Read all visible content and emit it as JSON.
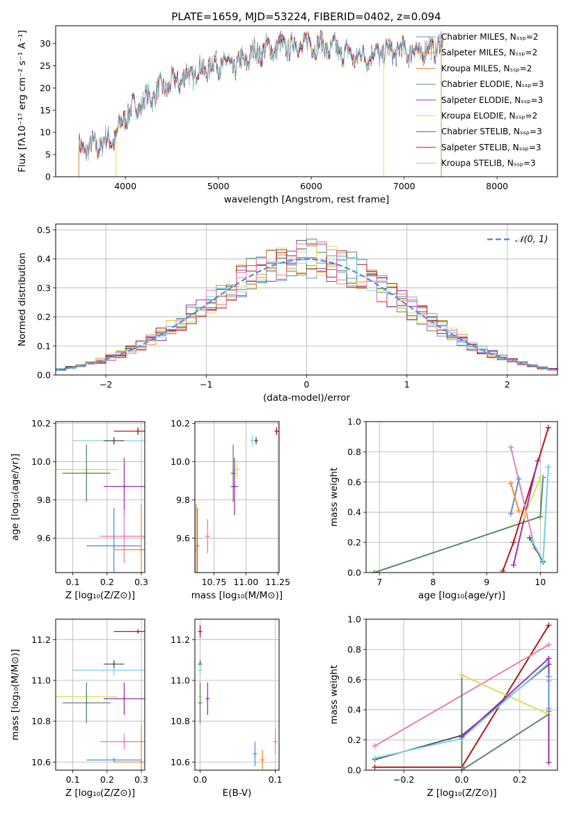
{
  "figure": {
    "title": "PLATE=1659, MJD=53224, FIBERID=0402, z=0.094"
  },
  "colors": {
    "Chabrier MILES": "#5b8fd9",
    "Salpeter MILES": "#f28d2c",
    "Kroupa MILES": "#d98a2b",
    "Chabrier ELODIE": "#5c8a5c",
    "Salpeter ELODIE": "#9b30b0",
    "Kroupa ELODIE": "#d4e157",
    "Chabrier STELIB": "#555555",
    "Salpeter STELIB": "#b01818",
    "Kroupa STELIB": "#80d8e6",
    "pink": "#e67fb5",
    "normal": "#5b8fd9"
  },
  "chart_data": [
    {
      "id": "spectrum",
      "type": "line",
      "title": "PLATE=1659, MJD=53224, FIBERID=0402, z=0.094",
      "xlabel": "wavelength [Angstrom, rest frame]",
      "ylabel": "Flux [fλ10⁻¹⁷ erg cm⁻² s⁻¹ A⁻¹]",
      "xlim": [
        3250,
        8650
      ],
      "ylim": [
        0,
        34
      ],
      "xticks": [
        4000,
        5000,
        6000,
        7000,
        8000
      ],
      "yticks": [
        0,
        5,
        10,
        15,
        20,
        25,
        30
      ],
      "legend_position": "upper-right",
      "legend": [
        "Chabrier MILES, Nₛₛₚ=2",
        "Salpeter MILES, Nₛₛₚ=2",
        "Kroupa MILES, Nₛₛₚ=2",
        "Chabrier ELODIE, Nₛₛₚ=3",
        "Salpeter ELODIE, Nₛₛₚ=3",
        "Kroupa ELODIE, Nₛₛₚ=2",
        "Chabrier STELIB, Nₛₛₚ=3",
        "Salpeter STELIB, Nₛₛₚ=3",
        "Kroupa STELIB, Nₛₛₚ=3"
      ],
      "continuum": [
        [
          3500,
          6
        ],
        [
          3700,
          7
        ],
        [
          3900,
          9
        ],
        [
          4000,
          14
        ],
        [
          4200,
          17
        ],
        [
          4400,
          20
        ],
        [
          4600,
          22
        ],
        [
          4800,
          24
        ],
        [
          5000,
          25.5
        ],
        [
          5200,
          25
        ],
        [
          5400,
          28
        ],
        [
          5600,
          29
        ],
        [
          5800,
          29.5
        ],
        [
          6000,
          30
        ],
        [
          6200,
          29
        ],
        [
          6500,
          27
        ],
        [
          6800,
          28
        ],
        [
          7000,
          28.5
        ],
        [
          7200,
          28
        ],
        [
          7400,
          30
        ]
      ],
      "cutoffs": [
        {
          "series": "Kroupa MILES",
          "x": 3500
        },
        {
          "series": "Kroupa ELODIE",
          "x": 3900
        },
        {
          "series": "Kroupa ELODIE",
          "x": 6780
        },
        {
          "series": "Kroupa MILES",
          "x": 7400
        }
      ]
    },
    {
      "id": "residuals",
      "type": "line",
      "xlabel": "(data-model)/error",
      "ylabel": "Normed distribution",
      "xlim": [
        -2.5,
        2.5
      ],
      "ylim": [
        0,
        0.52
      ],
      "xticks": [
        -2,
        -1,
        0,
        1,
        2
      ],
      "yticks": [
        0.0,
        0.1,
        0.2,
        0.3,
        0.4,
        0.5
      ],
      "legend": [
        "𝒩(0, 1)"
      ],
      "legend_position": "upper-right",
      "bin_width": 0.1
    },
    {
      "id": "age-vs-Z",
      "type": "scatter",
      "xlabel": "Z [log₁₀(Z/Z⊙)]",
      "ylabel": "age  [log₁₀(age/yr)]",
      "xlim": [
        0.05,
        0.31
      ],
      "ylim": [
        9.42,
        10.21
      ],
      "xticks": [
        0.1,
        0.2,
        0.3
      ],
      "yticks": [
        9.6,
        9.8,
        10.0,
        10.2
      ],
      "points": [
        {
          "series": "Salpeter STELIB",
          "x": 0.29,
          "y": 10.16,
          "xerr": 0.07,
          "yerr": 0.02
        },
        {
          "series": "Kroupa STELIB",
          "x": 0.22,
          "y": 10.11,
          "xerr": 0.12,
          "yerr": 0.02
        },
        {
          "series": "Chabrier STELIB",
          "x": 0.22,
          "y": 10.11,
          "xerr": 0.03,
          "yerr": 0.02
        },
        {
          "series": "Kroupa ELODIE",
          "x": 0.14,
          "y": 9.96,
          "xerr": 0.09,
          "yerr": 0.05
        },
        {
          "series": "Chabrier ELODIE",
          "x": 0.14,
          "y": 9.94,
          "xerr": 0.07,
          "yerr": 0.15
        },
        {
          "series": "Salpeter ELODIE",
          "x": 0.25,
          "y": 9.87,
          "xerr": 0.06,
          "yerr": 0.15
        },
        {
          "series": "pink",
          "x": 0.25,
          "y": 9.61,
          "xerr": 0.07,
          "yerr": 0.14
        },
        {
          "series": "Chabrier MILES",
          "x": 0.22,
          "y": 9.56,
          "xerr": 0.08,
          "yerr": 0.2
        },
        {
          "series": "Salpeter MILES",
          "x": 0.3,
          "y": 9.54,
          "xerr": 0.08,
          "yerr": 0.24
        }
      ]
    },
    {
      "id": "age-vs-mass",
      "type": "scatter",
      "xlabel": "mass [log₁₀(M/M⊙)]",
      "xlim": [
        10.6,
        11.26
      ],
      "ylim": [
        9.42,
        10.21
      ],
      "xticks": [
        10.75,
        11.0,
        11.25
      ],
      "xticklabels": [
        "10.75",
        "11.00",
        "11.25"
      ],
      "yticks": [
        9.6,
        9.8,
        10.0,
        10.2
      ],
      "points": [
        {
          "series": "Salpeter STELIB",
          "x": 11.24,
          "y": 10.16,
          "xerr": 0.0,
          "yerr": 0.02
        },
        {
          "series": "Chabrier STELIB",
          "x": 11.08,
          "y": 10.11,
          "xerr": 0.01,
          "yerr": 0.02
        },
        {
          "series": "Kroupa STELIB",
          "x": 11.05,
          "y": 10.11,
          "xerr": 0.0,
          "yerr": 0.03
        },
        {
          "series": "Kroupa ELODIE",
          "x": 10.93,
          "y": 9.96,
          "xerr": 0.02,
          "yerr": 0.05
        },
        {
          "series": "Chabrier ELODIE",
          "x": 10.9,
          "y": 9.94,
          "xerr": 0.02,
          "yerr": 0.15
        },
        {
          "series": "Salpeter ELODIE",
          "x": 10.91,
          "y": 9.87,
          "xerr": 0.03,
          "yerr": 0.15
        },
        {
          "series": "pink",
          "x": 10.7,
          "y": 9.61,
          "xerr": 0.02,
          "yerr": 0.09
        },
        {
          "series": "Chabrier MILES",
          "x": 10.62,
          "y": 9.56,
          "xerr": 0.01,
          "yerr": 0.2
        },
        {
          "series": "Salpeter MILES",
          "x": 10.61,
          "y": 9.54,
          "xerr": 0.0,
          "yerr": 0.24
        }
      ]
    },
    {
      "id": "weight-vs-age",
      "type": "line",
      "xlabel": "age  [log₁₀(age/yr)]",
      "ylabel": "mass weight",
      "xlim": [
        6.75,
        10.32
      ],
      "ylim": [
        0,
        1
      ],
      "xticks": [
        7,
        8,
        9,
        10
      ],
      "yticks": [
        0.0,
        0.2,
        0.4,
        0.6,
        0.8,
        1.0
      ],
      "series": [
        {
          "name": "Chabrier ELODIE",
          "points": [
            [
              6.9,
              0.0
            ],
            [
              10.0,
              0.37
            ],
            [
              10.05,
              0.63
            ]
          ]
        },
        {
          "name": "Salpeter STELIB",
          "points": [
            [
              9.3,
              0.01
            ],
            [
              9.5,
              0.2
            ],
            [
              10.15,
              0.96
            ]
          ]
        },
        {
          "name": "pink",
          "points": [
            [
              9.45,
              0.83
            ],
            [
              9.9,
              0.16
            ]
          ]
        },
        {
          "name": "Salpeter ELODIE",
          "points": [
            [
              9.5,
              0.05
            ],
            [
              9.95,
              0.74
            ]
          ]
        },
        {
          "name": "Chabrier MILES",
          "points": [
            [
              9.45,
              0.39
            ],
            [
              9.6,
              0.62
            ]
          ]
        },
        {
          "name": "Salpeter MILES",
          "points": [
            [
              9.45,
              0.59
            ],
            [
              9.6,
              0.41
            ]
          ]
        },
        {
          "name": "Kroupa ELODIE",
          "points": [
            [
              9.7,
              0.37
            ],
            [
              10.0,
              0.63
            ]
          ]
        },
        {
          "name": "Chabrier STELIB",
          "points": [
            [
              9.8,
              0.23
            ],
            [
              10.05,
              0.07
            ],
            [
              10.15,
              0.7
            ]
          ]
        },
        {
          "name": "Kroupa STELIB",
          "points": [
            [
              9.85,
              0.21
            ],
            [
              10.05,
              0.08
            ],
            [
              10.15,
              0.7
            ]
          ]
        }
      ]
    },
    {
      "id": "mass-vs-Z",
      "type": "scatter",
      "xlabel": "Z [log₁₀(Z/Z⊙)]",
      "ylabel": "mass [log₁₀(M/M⊙)]",
      "xlim": [
        0.05,
        0.31
      ],
      "ylim": [
        10.56,
        11.3
      ],
      "xticks": [
        0.1,
        0.2,
        0.3
      ],
      "yticks": [
        10.6,
        10.8,
        11.0,
        11.2
      ],
      "points": [
        {
          "series": "Salpeter STELIB",
          "x": 0.29,
          "y": 11.24,
          "xerr": 0.07,
          "yerr": 0.01
        },
        {
          "series": "Kroupa STELIB",
          "x": 0.22,
          "y": 11.05,
          "xerr": 0.12,
          "yerr": 0.03
        },
        {
          "series": "Chabrier STELIB",
          "x": 0.22,
          "y": 11.08,
          "xerr": 0.03,
          "yerr": 0.02
        },
        {
          "series": "Kroupa ELODIE",
          "x": 0.14,
          "y": 10.92,
          "xerr": 0.09,
          "yerr": 0.02
        },
        {
          "series": "Chabrier ELODIE",
          "x": 0.14,
          "y": 10.89,
          "xerr": 0.07,
          "yerr": 0.1
        },
        {
          "series": "Salpeter ELODIE",
          "x": 0.25,
          "y": 10.91,
          "xerr": 0.06,
          "yerr": 0.08
        },
        {
          "series": "pink",
          "x": 0.25,
          "y": 10.7,
          "xerr": 0.07,
          "yerr": 0.04
        },
        {
          "series": "Chabrier MILES",
          "x": 0.22,
          "y": 10.61,
          "xerr": 0.08,
          "yerr": 0.01
        },
        {
          "series": "Salpeter MILES",
          "x": 0.3,
          "y": 10.6,
          "xerr": 0.08,
          "yerr": 0.18
        }
      ]
    },
    {
      "id": "mass-vs-ebv",
      "type": "scatter",
      "xlabel": "E(B-V)",
      "xlim": [
        -0.007,
        0.105
      ],
      "ylim": [
        10.56,
        11.3
      ],
      "xticks": [
        0.0,
        0.1
      ],
      "yticks": [
        10.6,
        10.8,
        11.0,
        11.2
      ],
      "points": [
        {
          "series": "Salpeter STELIB",
          "x": 0.0,
          "y": 11.24,
          "xerr": 0.0,
          "yerr": 0.03
        },
        {
          "series": "Chabrier STELIB",
          "x": 0.0,
          "y": 11.08,
          "xerr": 0.0,
          "yerr": 0.02
        },
        {
          "series": "Kroupa STELIB",
          "x": 0.0,
          "y": 11.05,
          "xerr": 0.0,
          "yerr": 0.03
        },
        {
          "series": "Kroupa ELODIE",
          "x": 0.0,
          "y": 10.92,
          "xerr": 0.0,
          "yerr": 0.05
        },
        {
          "series": "Chabrier ELODIE",
          "x": 0.0,
          "y": 10.89,
          "xerr": 0.0,
          "yerr": 0.1
        },
        {
          "series": "Salpeter ELODIE",
          "x": 0.01,
          "y": 10.91,
          "xerr": 0.0,
          "yerr": 0.08
        },
        {
          "series": "Chabrier MILES",
          "x": 0.073,
          "y": 10.64,
          "xerr": 0.0,
          "yerr": 0.06
        },
        {
          "series": "Salpeter MILES",
          "x": 0.083,
          "y": 10.61,
          "xerr": 0.0,
          "yerr": 0.05
        },
        {
          "series": "pink",
          "x": 0.1,
          "y": 10.7,
          "xerr": 0.0,
          "yerr": 0.06
        }
      ]
    },
    {
      "id": "weight-vs-Z",
      "type": "line",
      "xlabel": "Z [log₁₀(Z/Z⊙)]",
      "ylabel": "mass weight",
      "xlim": [
        -0.33,
        0.33
      ],
      "ylim": [
        0,
        1
      ],
      "xticks": [
        -0.2,
        0.0,
        0.2
      ],
      "yticks": [
        0.0,
        0.2,
        0.4,
        0.6,
        0.8,
        1.0
      ],
      "series": [
        {
          "name": "Salpeter STELIB",
          "points": [
            [
              -0.3,
              0.02
            ],
            [
              0.0,
              0.02
            ],
            [
              0.3,
              0.96
            ]
          ]
        },
        {
          "name": "pink",
          "points": [
            [
              -0.3,
              0.16
            ],
            [
              0.3,
              0.83
            ]
          ]
        },
        {
          "name": "Chabrier ELODIE",
          "points": [
            [
              0.0,
              0.63
            ],
            [
              0.0,
              0.0
            ],
            [
              0.3,
              0.37
            ]
          ]
        },
        {
          "name": "Kroupa ELODIE",
          "points": [
            [
              0.0,
              0.63
            ],
            [
              0.3,
              0.37
            ]
          ]
        },
        {
          "name": "Chabrier STELIB",
          "points": [
            [
              -0.3,
              0.07
            ],
            [
              0.0,
              0.23
            ],
            [
              0.3,
              0.7
            ]
          ]
        },
        {
          "name": "Kroupa STELIB",
          "points": [
            [
              -0.3,
              0.08
            ],
            [
              0.0,
              0.21
            ],
            [
              0.3,
              0.71
            ]
          ]
        },
        {
          "name": "Salpeter ELODIE",
          "points": [
            [
              0.0,
              0.22
            ],
            [
              0.3,
              0.74
            ],
            [
              0.3,
              0.05
            ]
          ]
        },
        {
          "name": "Salpeter MILES",
          "points": [
            [
              0.3,
              0.59
            ],
            [
              0.3,
              0.41
            ]
          ]
        },
        {
          "name": "Chabrier MILES",
          "points": [
            [
              0.3,
              0.62
            ],
            [
              0.3,
              0.39
            ]
          ]
        }
      ]
    }
  ]
}
